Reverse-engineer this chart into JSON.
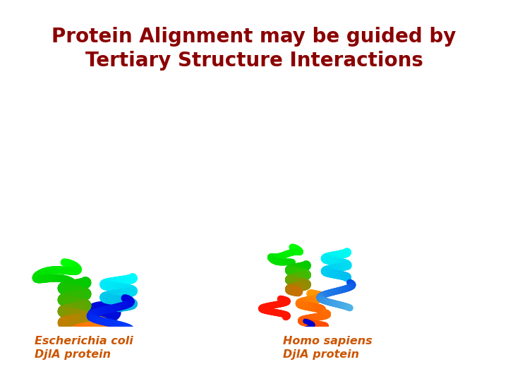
{
  "title_line1": "Protein Alignment may be guided by",
  "title_line2": "Tertiary Structure Interactions",
  "title_color": "#8B0000",
  "title_fontsize": 20,
  "bg_color": "#ffffff",
  "image_bg_color": "#000000",
  "label1_text_line1": "Escherichia coli",
  "label1_text_line2": "DjlA protein",
  "label2_text_line1": "Homo sapiens",
  "label2_text_line2": "DjlA protein",
  "label_color": "#CC5500",
  "label_bg_color": "#ffffff",
  "label_fontsize": 11.5
}
